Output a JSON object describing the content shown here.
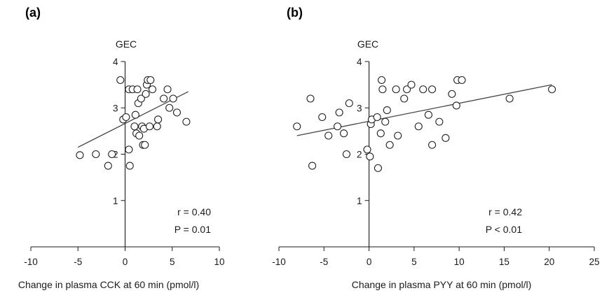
{
  "chart_data": [
    {
      "type": "scatter",
      "panel_label": "(a)",
      "title": "GEC",
      "xlabel": "Change in plasma CCK at 60 min (pmol/l)",
      "ylabel": "",
      "xlim": [
        -10,
        10
      ],
      "ylim": [
        0,
        4
      ],
      "x_ticks": [
        -10,
        -5,
        0,
        5,
        10
      ],
      "y_ticks": [
        1,
        2,
        3,
        4
      ],
      "annotations": [
        "r = 0.40",
        "P = 0.01"
      ],
      "trendline": {
        "x": [
          -5,
          6.7
        ],
        "y": [
          2.15,
          3.35
        ]
      },
      "points": [
        {
          "x": -4.8,
          "y": 1.98
        },
        {
          "x": -3.1,
          "y": 2.0
        },
        {
          "x": -1.8,
          "y": 1.75
        },
        {
          "x": -1.4,
          "y": 2.0
        },
        {
          "x": -0.5,
          "y": 3.6
        },
        {
          "x": -0.2,
          "y": 2.75
        },
        {
          "x": 0.1,
          "y": 2.8
        },
        {
          "x": 0.4,
          "y": 2.1
        },
        {
          "x": 0.5,
          "y": 1.75
        },
        {
          "x": 0.4,
          "y": 3.4
        },
        {
          "x": 0.8,
          "y": 3.4
        },
        {
          "x": 1.0,
          "y": 2.6
        },
        {
          "x": 1.1,
          "y": 2.85
        },
        {
          "x": 1.3,
          "y": 3.4
        },
        {
          "x": 1.2,
          "y": 2.45
        },
        {
          "x": 1.4,
          "y": 3.1
        },
        {
          "x": 1.5,
          "y": 2.4
        },
        {
          "x": 1.7,
          "y": 3.2
        },
        {
          "x": 1.8,
          "y": 2.6
        },
        {
          "x": 1.9,
          "y": 2.2
        },
        {
          "x": 2.0,
          "y": 2.55
        },
        {
          "x": 2.1,
          "y": 2.2
        },
        {
          "x": 2.2,
          "y": 3.3
        },
        {
          "x": 2.3,
          "y": 3.5
        },
        {
          "x": 2.4,
          "y": 3.6
        },
        {
          "x": 2.6,
          "y": 2.6
        },
        {
          "x": 2.7,
          "y": 3.6
        },
        {
          "x": 2.9,
          "y": 3.4
        },
        {
          "x": 3.4,
          "y": 2.6
        },
        {
          "x": 3.5,
          "y": 2.75
        },
        {
          "x": 4.1,
          "y": 3.2
        },
        {
          "x": 4.5,
          "y": 3.4
        },
        {
          "x": 4.7,
          "y": 3.0
        },
        {
          "x": 5.1,
          "y": 3.2
        },
        {
          "x": 5.5,
          "y": 2.9
        },
        {
          "x": 6.5,
          "y": 2.7
        }
      ]
    },
    {
      "type": "scatter",
      "panel_label": "(b)",
      "title": "GEC",
      "xlabel": "Change in plasma PYY at 60 min (pmol/l)",
      "ylabel": "",
      "xlim": [
        -10,
        25
      ],
      "ylim": [
        0,
        4
      ],
      "x_ticks": [
        -10,
        -5,
        0,
        5,
        10,
        15,
        20,
        25
      ],
      "y_ticks": [
        1,
        2,
        3,
        4
      ],
      "annotations": [
        "r = 0.42",
        "P < 0.01"
      ],
      "trendline": {
        "x": [
          -8,
          20.3
        ],
        "y": [
          2.4,
          3.5
        ]
      },
      "points": [
        {
          "x": -8.0,
          "y": 2.6
        },
        {
          "x": -6.5,
          "y": 3.2
        },
        {
          "x": -6.3,
          "y": 1.75
        },
        {
          "x": -5.2,
          "y": 2.8
        },
        {
          "x": -4.5,
          "y": 2.4
        },
        {
          "x": -3.5,
          "y": 2.6
        },
        {
          "x": -3.3,
          "y": 2.9
        },
        {
          "x": -2.5,
          "y": 2.0
        },
        {
          "x": -2.2,
          "y": 3.1
        },
        {
          "x": -2.8,
          "y": 2.45
        },
        {
          "x": -0.2,
          "y": 2.1
        },
        {
          "x": 0.1,
          "y": 1.95
        },
        {
          "x": 0.2,
          "y": 2.65
        },
        {
          "x": 0.3,
          "y": 2.75
        },
        {
          "x": 0.9,
          "y": 2.8
        },
        {
          "x": 1.0,
          "y": 1.7
        },
        {
          "x": 1.3,
          "y": 2.45
        },
        {
          "x": 1.5,
          "y": 3.4
        },
        {
          "x": 1.4,
          "y": 3.6
        },
        {
          "x": 1.8,
          "y": 2.7
        },
        {
          "x": 2.0,
          "y": 2.95
        },
        {
          "x": 2.3,
          "y": 2.2
        },
        {
          "x": 3.0,
          "y": 3.4
        },
        {
          "x": 3.2,
          "y": 2.4
        },
        {
          "x": 3.9,
          "y": 3.2
        },
        {
          "x": 4.2,
          "y": 3.4
        },
        {
          "x": 4.7,
          "y": 3.5
        },
        {
          "x": 5.5,
          "y": 2.6
        },
        {
          "x": 6.0,
          "y": 3.4
        },
        {
          "x": 6.6,
          "y": 2.85
        },
        {
          "x": 7.0,
          "y": 3.4
        },
        {
          "x": 7.0,
          "y": 2.2
        },
        {
          "x": 7.8,
          "y": 2.7
        },
        {
          "x": 8.5,
          "y": 2.35
        },
        {
          "x": 9.2,
          "y": 3.3
        },
        {
          "x": 9.7,
          "y": 3.05
        },
        {
          "x": 9.8,
          "y": 3.6
        },
        {
          "x": 10.3,
          "y": 3.6
        },
        {
          "x": 15.6,
          "y": 3.2
        },
        {
          "x": 20.3,
          "y": 3.4
        }
      ]
    }
  ]
}
